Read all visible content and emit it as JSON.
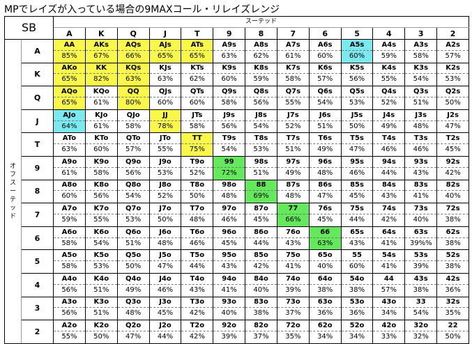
{
  "title": "MPでレイズが入っている場合の9MAXコール・リレイズレンジ",
  "position_label": "SB",
  "suited_label": "スーテッド",
  "offsuit_label": "オフスーテッド",
  "ranks": [
    "A",
    "K",
    "Q",
    "J",
    "T",
    "9",
    "8",
    "7",
    "6",
    "5",
    "4",
    "3",
    "2"
  ],
  "highlight_colors": {
    "yellow": "#f9f74a",
    "cyan": "#7be9f0",
    "green": "#64e85c"
  },
  "rows": [
    {
      "rank": "A",
      "cells": [
        {
          "hand": "AA",
          "pct": "85%",
          "hl": "yellow"
        },
        {
          "hand": "AKs",
          "pct": "67%",
          "hl": "yellow"
        },
        {
          "hand": "AQs",
          "pct": "66%",
          "hl": "yellow"
        },
        {
          "hand": "AJs",
          "pct": "65%",
          "hl": "yellow"
        },
        {
          "hand": "ATs",
          "pct": "65%",
          "hl": "yellow"
        },
        {
          "hand": "A9s",
          "pct": "63%"
        },
        {
          "hand": "A8s",
          "pct": "62%"
        },
        {
          "hand": "A7s",
          "pct": "61%"
        },
        {
          "hand": "A6s",
          "pct": "60%"
        },
        {
          "hand": "A5s",
          "pct": "60%",
          "hl": "cyan"
        },
        {
          "hand": "A4s",
          "pct": "59%"
        },
        {
          "hand": "A3s",
          "pct": "58%"
        },
        {
          "hand": "A2s",
          "pct": "57%"
        }
      ]
    },
    {
      "rank": "K",
      "cells": [
        {
          "hand": "AKo",
          "pct": "65%",
          "hl": "yellow"
        },
        {
          "hand": "KK",
          "pct": "82%",
          "hl": "yellow"
        },
        {
          "hand": "KQs",
          "pct": "63%",
          "hl": "yellow"
        },
        {
          "hand": "KJs",
          "pct": "63%"
        },
        {
          "hand": "KTs",
          "pct": "62%"
        },
        {
          "hand": "K9s",
          "pct": "60%"
        },
        {
          "hand": "K8s",
          "pct": "59%"
        },
        {
          "hand": "K7s",
          "pct": "58%"
        },
        {
          "hand": "K6s",
          "pct": "57%"
        },
        {
          "hand": "K5s",
          "pct": "56%"
        },
        {
          "hand": "K4s",
          "pct": "55%"
        },
        {
          "hand": "K3s",
          "pct": "54%"
        },
        {
          "hand": "K2s",
          "pct": "53%"
        }
      ]
    },
    {
      "rank": "Q",
      "cells": [
        {
          "hand": "AQo",
          "pct": "65%",
          "hl": "yellow"
        },
        {
          "hand": "KQo",
          "pct": "61%"
        },
        {
          "hand": "QQ",
          "pct": "80%",
          "hl": "yellow"
        },
        {
          "hand": "QJs",
          "pct": "60%"
        },
        {
          "hand": "QTs",
          "pct": "60%"
        },
        {
          "hand": "Q9s",
          "pct": "58%"
        },
        {
          "hand": "Q8s",
          "pct": "56%"
        },
        {
          "hand": "Q7s",
          "pct": "55%"
        },
        {
          "hand": "Q6s",
          "pct": "54%"
        },
        {
          "hand": "Q5s",
          "pct": "53%"
        },
        {
          "hand": "Q4s",
          "pct": "52%"
        },
        {
          "hand": "Q3s",
          "pct": "51%"
        },
        {
          "hand": "Q2s",
          "pct": "50%"
        }
      ]
    },
    {
      "rank": "J",
      "cells": [
        {
          "hand": "AJo",
          "pct": "64%",
          "hl": "cyan"
        },
        {
          "hand": "KJo",
          "pct": "61%"
        },
        {
          "hand": "QJo",
          "pct": "58%"
        },
        {
          "hand": "JJ",
          "pct": "78%",
          "hl": "yellow"
        },
        {
          "hand": "JTs",
          "pct": "58%"
        },
        {
          "hand": "J9s",
          "pct": "56%"
        },
        {
          "hand": "J8s",
          "pct": "54%"
        },
        {
          "hand": "J7s",
          "pct": "52%"
        },
        {
          "hand": "J6s",
          "pct": "51%"
        },
        {
          "hand": "J5s",
          "pct": "50%"
        },
        {
          "hand": "J4s",
          "pct": "49%"
        },
        {
          "hand": "J3s",
          "pct": "48%"
        },
        {
          "hand": "J2s",
          "pct": "47%"
        }
      ]
    },
    {
      "rank": "T",
      "cells": [
        {
          "hand": "ATo",
          "pct": "63%"
        },
        {
          "hand": "KTo",
          "pct": "60%"
        },
        {
          "hand": "QTo",
          "pct": "57%"
        },
        {
          "hand": "JTo",
          "pct": "55%"
        },
        {
          "hand": "TT",
          "pct": "75%",
          "hl": "yellow"
        },
        {
          "hand": "T9s",
          "pct": "54%"
        },
        {
          "hand": "T8s",
          "pct": "53%"
        },
        {
          "hand": "T7s",
          "pct": "51%"
        },
        {
          "hand": "T6s",
          "pct": "49%"
        },
        {
          "hand": "T5s",
          "pct": "47%"
        },
        {
          "hand": "T4s",
          "pct": "46%"
        },
        {
          "hand": "T3s",
          "pct": "46%"
        },
        {
          "hand": "T2s",
          "pct": "45%"
        }
      ]
    },
    {
      "rank": "9",
      "cells": [
        {
          "hand": "A9o",
          "pct": "61%"
        },
        {
          "hand": "K9o",
          "pct": "58%"
        },
        {
          "hand": "Q9o",
          "pct": "56%"
        },
        {
          "hand": "J9o",
          "pct": "53%"
        },
        {
          "hand": "T9o",
          "pct": "52%"
        },
        {
          "hand": "99",
          "pct": "72%",
          "hl": "green"
        },
        {
          "hand": "98s",
          "pct": "51%"
        },
        {
          "hand": "97s",
          "pct": "49%"
        },
        {
          "hand": "96s",
          "pct": "48%"
        },
        {
          "hand": "95s",
          "pct": "46%"
        },
        {
          "hand": "94s",
          "pct": "44%"
        },
        {
          "hand": "93s",
          "pct": "43%"
        },
        {
          "hand": "92s",
          "pct": "42%"
        }
      ]
    },
    {
      "rank": "8",
      "cells": [
        {
          "hand": "A8o",
          "pct": "60%"
        },
        {
          "hand": "K8o",
          "pct": "56%"
        },
        {
          "hand": "Q8o",
          "pct": "54%"
        },
        {
          "hand": "J8o",
          "pct": "52%"
        },
        {
          "hand": "T8o",
          "pct": "50%"
        },
        {
          "hand": "98o",
          "pct": "48%"
        },
        {
          "hand": "88",
          "pct": "69%",
          "hl": "green"
        },
        {
          "hand": "87s",
          "pct": "48%"
        },
        {
          "hand": "86s",
          "pct": "47%"
        },
        {
          "hand": "85s",
          "pct": "45%"
        },
        {
          "hand": "84s",
          "pct": "43%"
        },
        {
          "hand": "83s",
          "pct": "41%"
        },
        {
          "hand": "82s",
          "pct": "40%"
        }
      ]
    },
    {
      "rank": "7",
      "cells": [
        {
          "hand": "A7o",
          "pct": "59%"
        },
        {
          "hand": "K7o",
          "pct": "55%"
        },
        {
          "hand": "Q7o",
          "pct": "53%"
        },
        {
          "hand": "J7o",
          "pct": "50%"
        },
        {
          "hand": "T7o",
          "pct": "48%"
        },
        {
          "hand": "97o",
          "pct": "46%"
        },
        {
          "hand": "87o",
          "pct": "45%"
        },
        {
          "hand": "77",
          "pct": "66%",
          "hl": "green"
        },
        {
          "hand": "76s",
          "pct": "45%"
        },
        {
          "hand": "75s",
          "pct": "44%"
        },
        {
          "hand": "74s",
          "pct": "42%"
        },
        {
          "hand": "73s",
          "pct": "40%"
        },
        {
          "hand": "72s",
          "pct": "38%"
        }
      ]
    },
    {
      "rank": "6",
      "cells": [
        {
          "hand": "A6o",
          "pct": "58%"
        },
        {
          "hand": "K6o",
          "pct": "54%"
        },
        {
          "hand": "Q6o",
          "pct": "51%"
        },
        {
          "hand": "J6o",
          "pct": "48%"
        },
        {
          "hand": "T6o",
          "pct": "46%"
        },
        {
          "hand": "96o",
          "pct": "45%"
        },
        {
          "hand": "86o",
          "pct": "44%"
        },
        {
          "hand": "76o",
          "pct": "43%"
        },
        {
          "hand": "66",
          "pct": "63%",
          "hl": "green"
        },
        {
          "hand": "65s",
          "pct": "43%"
        },
        {
          "hand": "64s",
          "pct": "41%"
        },
        {
          "hand": "63s",
          "pct": "39%%"
        },
        {
          "hand": "62s",
          "pct": "38%"
        }
      ]
    },
    {
      "rank": "5",
      "cells": [
        {
          "hand": "A5o",
          "pct": "58%"
        },
        {
          "hand": "K5o",
          "pct": "53%"
        },
        {
          "hand": "Q5o",
          "pct": "50%"
        },
        {
          "hand": "J5o",
          "pct": "47%"
        },
        {
          "hand": "T5o",
          "pct": "44%"
        },
        {
          "hand": "95o",
          "pct": "43%"
        },
        {
          "hand": "85o",
          "pct": "42%"
        },
        {
          "hand": "75o",
          "pct": "41%"
        },
        {
          "hand": "65o",
          "pct": "40%"
        },
        {
          "hand": "55",
          "pct": "60%"
        },
        {
          "hand": "54s",
          "pct": "41%"
        },
        {
          "hand": "53s",
          "pct": "39%"
        },
        {
          "hand": "52s",
          "pct": "38%"
        }
      ]
    },
    {
      "rank": "4",
      "cells": [
        {
          "hand": "A4o",
          "pct": "56%"
        },
        {
          "hand": "K4o",
          "pct": "51%"
        },
        {
          "hand": "Q4o",
          "pct": "49%"
        },
        {
          "hand": "J4o",
          "pct": "46%"
        },
        {
          "hand": "T4o",
          "pct": "43%"
        },
        {
          "hand": "94o",
          "pct": "41%"
        },
        {
          "hand": "84o",
          "pct": "40%"
        },
        {
          "hand": "74o",
          "pct": "39%"
        },
        {
          "hand": "64o",
          "pct": "38%"
        },
        {
          "hand": "54o",
          "pct": "38%"
        },
        {
          "hand": "44",
          "pct": "57%"
        },
        {
          "hand": "43s",
          "pct": "38%"
        },
        {
          "hand": "42s",
          "pct": "36%"
        }
      ]
    },
    {
      "rank": "3",
      "cells": [
        {
          "hand": "A3o",
          "pct": "56%"
        },
        {
          "hand": "K3o",
          "pct": "51%"
        },
        {
          "hand": "Q3o",
          "pct": "48%"
        },
        {
          "hand": "J3o",
          "pct": "45%"
        },
        {
          "hand": "T3o",
          "pct": "42%"
        },
        {
          "hand": "93o",
          "pct": "40%"
        },
        {
          "hand": "83o",
          "pct": "38%"
        },
        {
          "hand": "73o",
          "pct": "37%"
        },
        {
          "hand": "63o",
          "pct": "36%"
        },
        {
          "hand": "53o",
          "pct": "36%"
        },
        {
          "hand": "43o",
          "pct": "34%"
        },
        {
          "hand": "33",
          "pct": "54%"
        },
        {
          "hand": "32s",
          "pct": "35%"
        }
      ]
    },
    {
      "rank": "2",
      "cells": [
        {
          "hand": "A2o",
          "pct": "55%"
        },
        {
          "hand": "K2o",
          "pct": "50%"
        },
        {
          "hand": "Q2o",
          "pct": "47%"
        },
        {
          "hand": "J2o",
          "pct": "44%"
        },
        {
          "hand": "T2o",
          "pct": "42%"
        },
        {
          "hand": "92o",
          "pct": "39%"
        },
        {
          "hand": "82o",
          "pct": "37%"
        },
        {
          "hand": "72o",
          "pct": "35%"
        },
        {
          "hand": "62o",
          "pct": "34%"
        },
        {
          "hand": "52o",
          "pct": "34%"
        },
        {
          "hand": "42o",
          "pct": "33%"
        },
        {
          "hand": "32o",
          "pct": "32%"
        },
        {
          "hand": "22",
          "pct": "50%"
        }
      ]
    }
  ]
}
